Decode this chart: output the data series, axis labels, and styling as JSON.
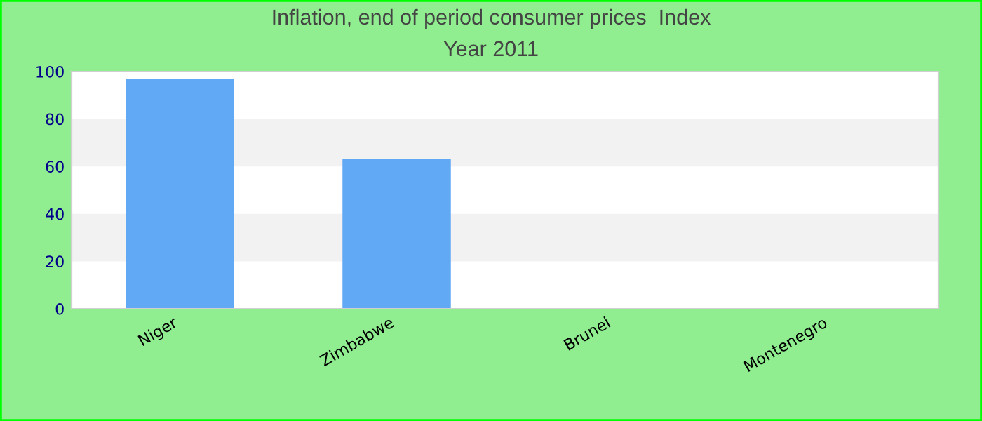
{
  "chart_data": {
    "type": "bar",
    "title": "Inflation, end of period consumer prices  Index",
    "subtitle": "Year 2011",
    "categories": [
      "Niger",
      "Zimbabwe",
      "Brunei",
      "Montenegro"
    ],
    "values": [
      97,
      63,
      null,
      null
    ],
    "color": "#62a9f5",
    "ylim": [
      0,
      100
    ],
    "yticks": [
      0,
      20,
      40,
      60,
      80,
      100
    ],
    "bands": [
      {
        "axis": "y",
        "from": 20,
        "to": 40,
        "color": "#f2f2f2"
      },
      {
        "axis": "y",
        "from": 60,
        "to": 80,
        "color": "#f2f2f2"
      }
    ]
  }
}
